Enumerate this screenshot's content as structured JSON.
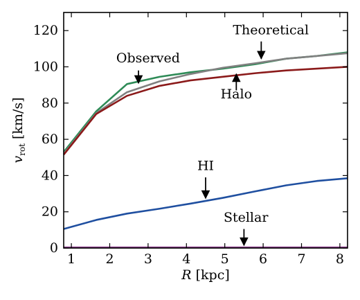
{
  "chart_data": {
    "type": "line",
    "title": "",
    "xlabel_italic": "R",
    "xlabel_rest": " [kpc]",
    "ylabel_main": "v",
    "ylabel_sub": "rot",
    "ylabel_rest": " [km/s]",
    "xlim": [
      0.8,
      8.2
    ],
    "ylim": [
      0,
      130
    ],
    "x_ticks": [
      1,
      2,
      3,
      4,
      5,
      6,
      7,
      8
    ],
    "x_tick_labels": [
      "1",
      "2",
      "3",
      "4",
      "5",
      "6",
      "7",
      "8"
    ],
    "y_ticks": [
      0,
      20,
      40,
      60,
      80,
      100,
      120
    ],
    "y_tick_labels": [
      "0",
      "20",
      "40",
      "60",
      "80",
      "100",
      "120"
    ],
    "grid": false,
    "series": [
      {
        "name": "Observed",
        "color": "#2e8b57",
        "x": [
          0.8,
          1.65,
          2.45,
          3.3,
          4.1,
          4.95,
          5.8,
          6.6,
          7.4,
          8.2
        ],
        "y": [
          53,
          75.5,
          90.5,
          94.5,
          97,
          99,
          101.5,
          104.5,
          106,
          108
        ]
      },
      {
        "name": "Theoretical",
        "color": "#808080",
        "x": [
          0.8,
          1.65,
          2.45,
          3.3,
          4.1,
          4.95,
          5.8,
          6.6,
          7.4,
          8.2
        ],
        "y": [
          52,
          74.5,
          86,
          92,
          96,
          99.5,
          102,
          104.5,
          106,
          107.5
        ]
      },
      {
        "name": "Halo",
        "color": "#8b1a1a",
        "x": [
          0.8,
          1.65,
          2.45,
          3.3,
          4.1,
          4.95,
          5.8,
          6.6,
          7.4,
          8.2
        ],
        "y": [
          51.5,
          74,
          84,
          89.5,
          92.5,
          94.5,
          96.5,
          98,
          99,
          100
        ]
      },
      {
        "name": "HI",
        "color": "#1f4fa0",
        "x": [
          0.8,
          1.65,
          2.45,
          3.3,
          4.1,
          4.95,
          5.8,
          6.6,
          7.4,
          8.2
        ],
        "y": [
          10.5,
          15.5,
          19,
          21.7,
          24.5,
          27.7,
          31.3,
          34.6,
          37,
          38.5
        ]
      },
      {
        "name": "Stellar",
        "color": "#8b3a8b",
        "x": [
          0.8,
          8.2
        ],
        "y": [
          0.3,
          0.3
        ]
      }
    ],
    "annotations": [
      {
        "text": "Observed",
        "label_x": 3.0,
        "label_y": 102.5,
        "arrow_x": 2.75,
        "arrow_from_y": 98,
        "arrow_to_y": 91
      },
      {
        "text": "Theoretical",
        "label_x": 6.2,
        "label_y": 118,
        "arrow_x": 5.95,
        "arrow_from_y": 114,
        "arrow_to_y": 104.5
      },
      {
        "text": "Halo",
        "label_x": 5.3,
        "label_y": 82.5,
        "arrow_x": 5.3,
        "arrow_from_y": 87,
        "arrow_to_y": 96
      },
      {
        "text": "HI",
        "label_x": 4.5,
        "label_y": 43,
        "arrow_x": 4.5,
        "arrow_from_y": 39,
        "arrow_to_y": 27.5
      },
      {
        "text": "Stellar",
        "label_x": 5.55,
        "label_y": 14.5,
        "arrow_x": 5.5,
        "arrow_from_y": 10.5,
        "arrow_to_y": 1.5
      }
    ]
  }
}
